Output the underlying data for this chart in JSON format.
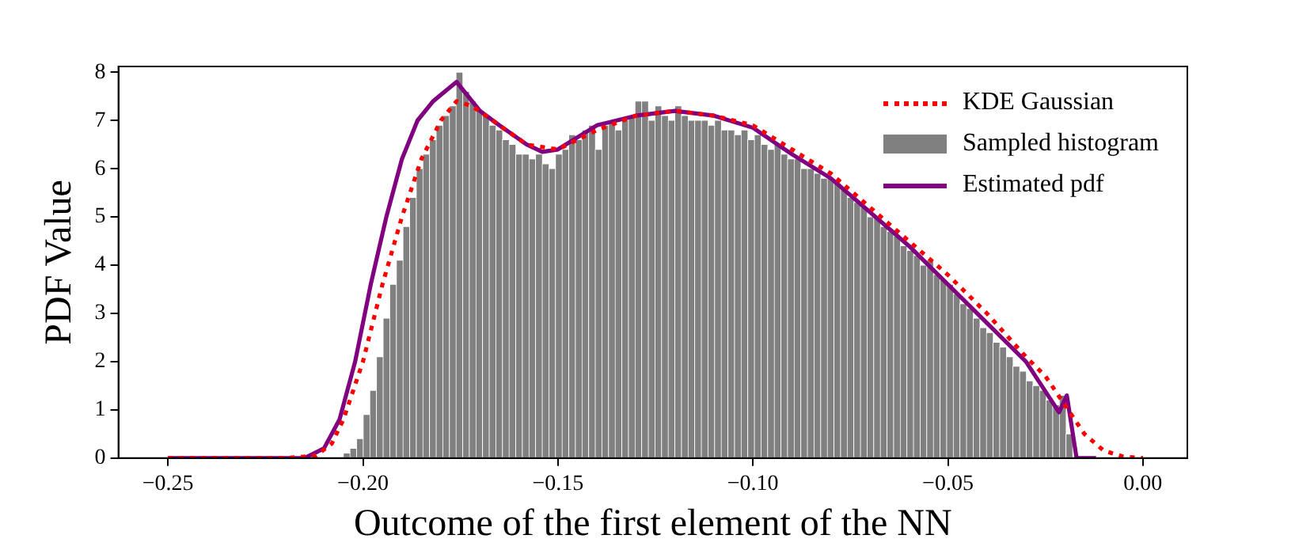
{
  "chart_data": {
    "type": "histogram",
    "xlabel": "Outcome of the first element of the NN",
    "ylabel": "PDF Value",
    "xlim": [
      -0.2627,
      0.0114
    ],
    "ylim": [
      0,
      8.12
    ],
    "xticks": [
      {
        "value": -0.25,
        "label": "−0.25"
      },
      {
        "value": -0.2,
        "label": "−0.20"
      },
      {
        "value": -0.15,
        "label": "−0.15"
      },
      {
        "value": -0.1,
        "label": "−0.10"
      },
      {
        "value": -0.05,
        "label": "−0.05"
      },
      {
        "value": 0,
        "label": "0.00"
      }
    ],
    "yticks": [
      0,
      1,
      2,
      3,
      4,
      5,
      6,
      7,
      8
    ],
    "grid": false,
    "legend": "top right",
    "series": [
      {
        "name": "KDE Gaussian",
        "type": "line",
        "color": "#ff0000",
        "line_style": "dotted",
        "x": [
          -0.25,
          -0.22,
          -0.212,
          -0.208,
          -0.205,
          -0.2,
          -0.195,
          -0.19,
          -0.185,
          -0.18,
          -0.176,
          -0.172,
          -0.165,
          -0.158,
          -0.15,
          -0.14,
          -0.13,
          -0.12,
          -0.11,
          -0.1,
          -0.09,
          -0.08,
          -0.07,
          -0.06,
          -0.05,
          -0.04,
          -0.03,
          -0.025,
          -0.02,
          -0.015,
          -0.01,
          -0.005,
          0
        ],
        "values": [
          0,
          0,
          0.05,
          0.3,
          0.8,
          2.0,
          3.6,
          5.0,
          6.2,
          7.0,
          7.4,
          7.3,
          6.9,
          6.5,
          6.4,
          6.8,
          7.1,
          7.2,
          7.1,
          6.9,
          6.4,
          5.9,
          5.2,
          4.5,
          3.8,
          3.0,
          2.1,
          1.7,
          1.1,
          0.5,
          0.15,
          0.03,
          0
        ]
      },
      {
        "name": "Sampled histogram",
        "type": "histogram",
        "color": "#808080",
        "bins": [
          -0.205,
          -0.2033,
          -0.2016,
          -0.1999,
          -0.1982,
          -0.1965,
          -0.1948,
          -0.1931,
          -0.1914,
          -0.1897,
          -0.188,
          -0.1863,
          -0.1846,
          -0.1829,
          -0.1812,
          -0.1795,
          -0.1778,
          -0.1761,
          -0.1744,
          -0.1727,
          -0.171,
          -0.1693,
          -0.1676,
          -0.1659,
          -0.1642,
          -0.1625,
          -0.1608,
          -0.1591,
          -0.1574,
          -0.1557,
          -0.154,
          -0.1523,
          -0.1506,
          -0.1489,
          -0.1472,
          -0.1455,
          -0.1438,
          -0.1421,
          -0.1404,
          -0.1387,
          -0.137,
          -0.1353,
          -0.1336,
          -0.1319,
          -0.1302,
          -0.1285,
          -0.1268,
          -0.1251,
          -0.1234,
          -0.1217,
          -0.12,
          -0.1183,
          -0.1166,
          -0.1149,
          -0.1132,
          -0.1115,
          -0.1098,
          -0.1081,
          -0.1064,
          -0.1047,
          -0.103,
          -0.1013,
          -0.0996,
          -0.0979,
          -0.0962,
          -0.0945,
          -0.0928,
          -0.0911,
          -0.0894,
          -0.0877,
          -0.086,
          -0.0843,
          -0.0826,
          -0.0809,
          -0.0792,
          -0.0775,
          -0.0758,
          -0.0741,
          -0.0724,
          -0.0707,
          -0.069,
          -0.0673,
          -0.0656,
          -0.0639,
          -0.0622,
          -0.0605,
          -0.0588,
          -0.0571,
          -0.0554,
          -0.0537,
          -0.052,
          -0.0503,
          -0.0486,
          -0.0469,
          -0.0452,
          -0.0435,
          -0.0418,
          -0.0401,
          -0.0384,
          -0.0367,
          -0.035,
          -0.0333,
          -0.0316,
          -0.0299,
          -0.0282,
          -0.0265,
          -0.0248,
          -0.0231,
          -0.0214,
          -0.0197,
          -0.018
        ],
        "values": [
          0.1,
          0.2,
          0.4,
          0.9,
          1.4,
          2.1,
          2.9,
          3.6,
          4.1,
          4.8,
          5.4,
          6.0,
          6.3,
          6.6,
          6.9,
          7.1,
          7.3,
          8.0,
          7.6,
          7.4,
          7.2,
          7.1,
          6.9,
          6.8,
          6.6,
          6.5,
          6.3,
          6.3,
          6.2,
          6.3,
          6.1,
          6.0,
          6.3,
          6.4,
          6.7,
          6.6,
          6.8,
          6.9,
          6.4,
          6.9,
          7.0,
          6.8,
          7.0,
          7.1,
          7.4,
          7.4,
          7.0,
          7.3,
          7.1,
          7.0,
          7.3,
          7.1,
          7.0,
          7.0,
          7.0,
          6.9,
          7.0,
          6.8,
          6.8,
          6.7,
          6.8,
          6.6,
          6.7,
          6.5,
          6.4,
          6.5,
          6.3,
          6.2,
          6.2,
          6.0,
          6.0,
          5.9,
          5.8,
          5.8,
          5.7,
          5.6,
          5.4,
          5.3,
          5.2,
          5.0,
          5.0,
          4.8,
          4.7,
          4.6,
          4.4,
          4.3,
          4.2,
          4.0,
          4.1,
          3.8,
          3.7,
          3.6,
          3.4,
          3.2,
          3.1,
          2.9,
          2.7,
          2.6,
          2.4,
          2.3,
          2.1,
          1.9,
          1.8,
          1.6,
          1.5,
          1.4,
          1.2,
          1.1,
          1.3,
          0.5
        ]
      },
      {
        "name": "Estimated pdf",
        "type": "line",
        "color": "#800080",
        "line_style": "solid",
        "x": [
          -0.25,
          -0.215,
          -0.21,
          -0.206,
          -0.202,
          -0.198,
          -0.194,
          -0.19,
          -0.186,
          -0.182,
          -0.176,
          -0.17,
          -0.165,
          -0.158,
          -0.154,
          -0.15,
          -0.14,
          -0.13,
          -0.12,
          -0.11,
          -0.1,
          -0.09,
          -0.08,
          -0.07,
          -0.06,
          -0.05,
          -0.04,
          -0.03,
          -0.0215,
          -0.0195,
          -0.017,
          -0.012
        ],
        "values": [
          0,
          0,
          0.2,
          0.8,
          2.0,
          3.6,
          5.0,
          6.2,
          7.0,
          7.4,
          7.8,
          7.2,
          6.9,
          6.5,
          6.35,
          6.4,
          6.9,
          7.1,
          7.2,
          7.1,
          6.85,
          6.3,
          5.8,
          5.1,
          4.4,
          3.6,
          2.8,
          2.0,
          0.95,
          1.3,
          0,
          0
        ]
      }
    ]
  }
}
